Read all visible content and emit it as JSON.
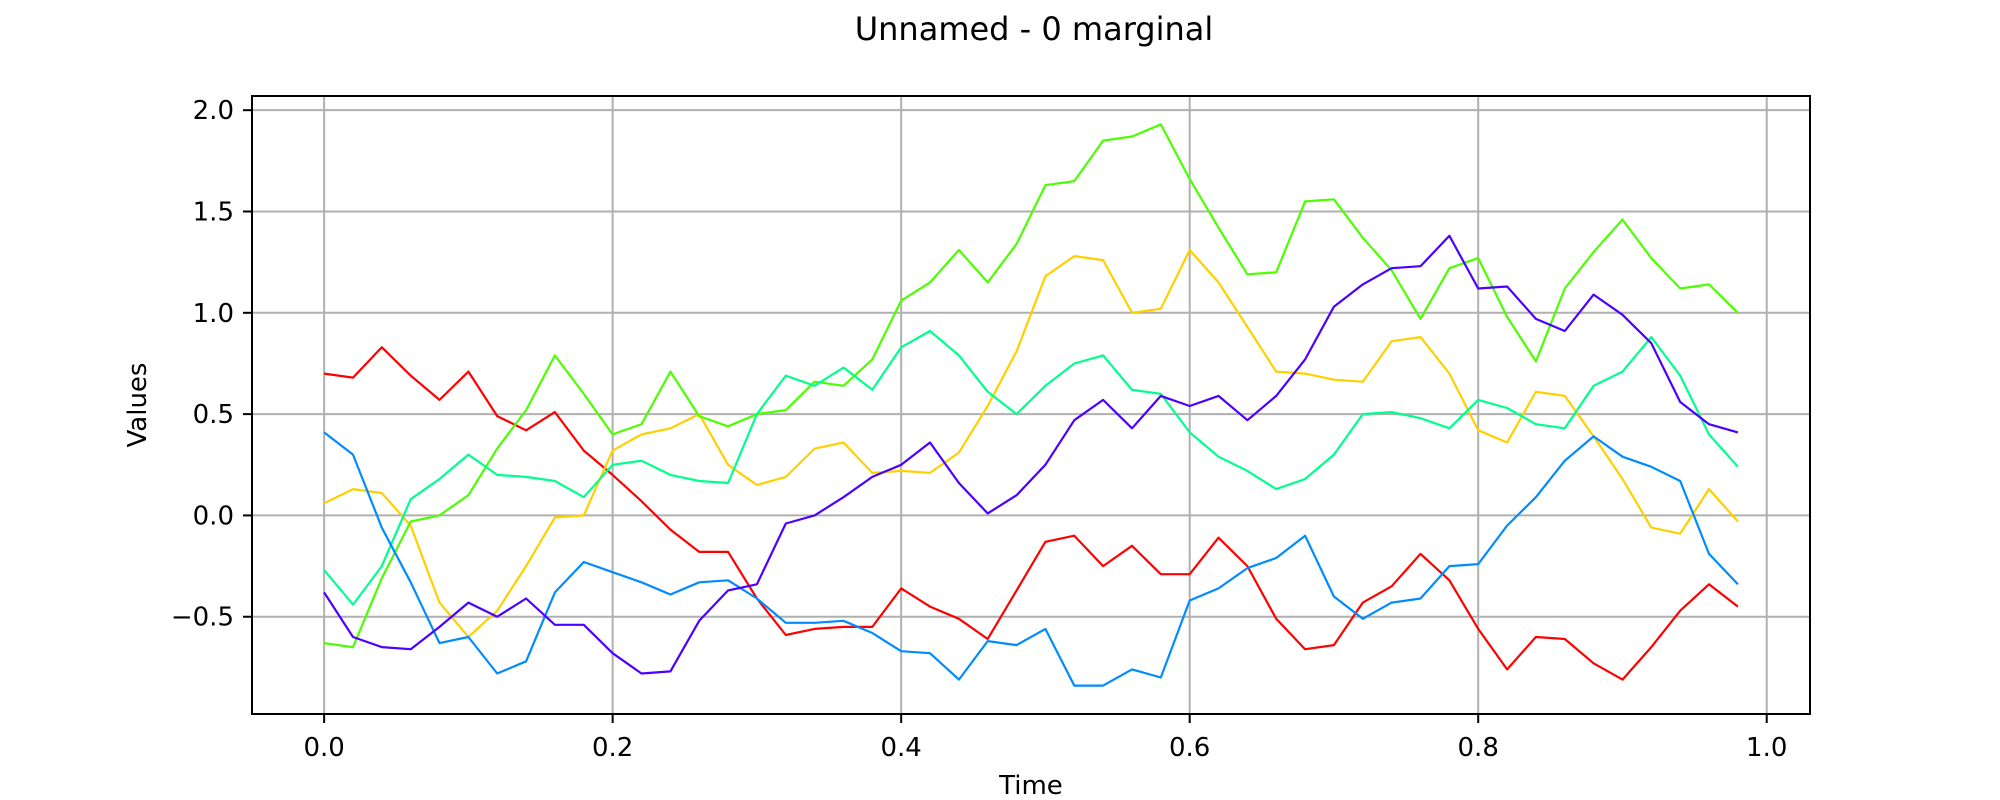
{
  "chart_data": {
    "type": "line",
    "title": "Unnamed - 0 marginal",
    "xlabel": "Time",
    "ylabel": "Values",
    "xlim": [
      -0.05,
      1.03
    ],
    "ylim": [
      -0.98,
      2.07
    ],
    "xticks": [
      0.0,
      0.2,
      0.4,
      0.6,
      0.8,
      1.0
    ],
    "xtick_labels": [
      "0.0",
      "0.2",
      "0.4",
      "0.6",
      "0.8",
      "1.0"
    ],
    "yticks": [
      -0.5,
      0.0,
      0.5,
      1.0,
      1.5,
      2.0
    ],
    "ytick_labels": [
      "−0.5",
      "0.0",
      "0.5",
      "1.0",
      "1.5",
      "2.0"
    ],
    "grid": true,
    "x": [
      0.0,
      0.02,
      0.04,
      0.06,
      0.08,
      0.1,
      0.12,
      0.14,
      0.16,
      0.18,
      0.2,
      0.22,
      0.24,
      0.26,
      0.28,
      0.3,
      0.32,
      0.34,
      0.36,
      0.38,
      0.4,
      0.42,
      0.44,
      0.46,
      0.48,
      0.5,
      0.52,
      0.54,
      0.56,
      0.58,
      0.6,
      0.62,
      0.64,
      0.66,
      0.68,
      0.7,
      0.72,
      0.74,
      0.76,
      0.78,
      0.8,
      0.82,
      0.84,
      0.86,
      0.88,
      0.9,
      0.92,
      0.94,
      0.96,
      0.98
    ],
    "series": [
      {
        "color": "#ff0000",
        "values": [
          0.7,
          0.68,
          0.83,
          0.69,
          0.57,
          0.71,
          0.49,
          0.42,
          0.51,
          0.32,
          0.2,
          0.07,
          -0.07,
          -0.18,
          -0.18,
          -0.41,
          -0.59,
          -0.56,
          -0.55,
          -0.55,
          -0.36,
          -0.45,
          -0.51,
          -0.61,
          -0.37,
          -0.13,
          -0.1,
          -0.25,
          -0.15,
          -0.29,
          -0.29,
          -0.11,
          -0.25,
          -0.51,
          -0.66,
          -0.64,
          -0.43,
          -0.35,
          -0.19,
          -0.32,
          -0.56,
          -0.76,
          -0.6,
          -0.61,
          -0.73,
          -0.81,
          -0.65,
          -0.47,
          -0.34,
          -0.45
        ]
      },
      {
        "color": "#ffd000",
        "values": [
          0.06,
          0.13,
          0.11,
          -0.05,
          -0.43,
          -0.6,
          -0.47,
          -0.25,
          -0.01,
          0.0,
          0.32,
          0.4,
          0.43,
          0.5,
          0.25,
          0.15,
          0.19,
          0.33,
          0.36,
          0.21,
          0.22,
          0.21,
          0.31,
          0.54,
          0.81,
          1.18,
          1.28,
          1.26,
          1.0,
          1.02,
          1.31,
          1.15,
          0.93,
          0.71,
          0.7,
          0.67,
          0.66,
          0.86,
          0.88,
          0.7,
          0.42,
          0.36,
          0.61,
          0.59,
          0.39,
          0.18,
          -0.06,
          -0.09,
          0.13,
          -0.03
        ]
      },
      {
        "color": "#4cff00",
        "values": [
          -0.63,
          -0.65,
          -0.31,
          -0.03,
          0.0,
          0.1,
          0.33,
          0.52,
          0.79,
          0.6,
          0.4,
          0.45,
          0.71,
          0.49,
          0.44,
          0.5,
          0.52,
          0.66,
          0.64,
          0.77,
          1.06,
          1.15,
          1.31,
          1.15,
          1.34,
          1.63,
          1.65,
          1.85,
          1.87,
          1.93,
          1.66,
          1.42,
          1.19,
          1.2,
          1.55,
          1.56,
          1.37,
          1.21,
          0.97,
          1.22,
          1.27,
          0.98,
          0.76,
          1.12,
          1.3,
          1.46,
          1.27,
          1.12,
          1.14,
          1.0
        ]
      },
      {
        "color": "#00ff8c",
        "values": [
          -0.27,
          -0.44,
          -0.25,
          0.08,
          0.18,
          0.3,
          0.2,
          0.19,
          0.17,
          0.09,
          0.25,
          0.27,
          0.2,
          0.17,
          0.16,
          0.5,
          0.69,
          0.64,
          0.73,
          0.62,
          0.83,
          0.91,
          0.79,
          0.61,
          0.5,
          0.64,
          0.75,
          0.79,
          0.62,
          0.6,
          0.41,
          0.29,
          0.22,
          0.13,
          0.18,
          0.3,
          0.5,
          0.51,
          0.48,
          0.43,
          0.57,
          0.53,
          0.45,
          0.43,
          0.64,
          0.71,
          0.88,
          0.69,
          0.4,
          0.24
        ]
      },
      {
        "color": "#008cff",
        "values": [
          0.41,
          0.3,
          -0.06,
          -0.33,
          -0.63,
          -0.6,
          -0.78,
          -0.72,
          -0.38,
          -0.23,
          -0.28,
          -0.33,
          -0.39,
          -0.33,
          -0.32,
          -0.41,
          -0.53,
          -0.53,
          -0.52,
          -0.58,
          -0.67,
          -0.68,
          -0.81,
          -0.62,
          -0.64,
          -0.56,
          -0.84,
          -0.84,
          -0.76,
          -0.8,
          -0.42,
          -0.36,
          -0.26,
          -0.21,
          -0.1,
          -0.4,
          -0.51,
          -0.43,
          -0.41,
          -0.25,
          -0.24,
          -0.05,
          0.09,
          0.27,
          0.39,
          0.29,
          0.24,
          0.17,
          -0.19,
          -0.34
        ]
      },
      {
        "color": "#4c00ff",
        "values": [
          -0.38,
          -0.6,
          -0.65,
          -0.66,
          -0.55,
          -0.43,
          -0.5,
          -0.41,
          -0.54,
          -0.54,
          -0.68,
          -0.78,
          -0.77,
          -0.52,
          -0.37,
          -0.34,
          -0.04,
          0.0,
          0.09,
          0.19,
          0.25,
          0.36,
          0.16,
          0.01,
          0.1,
          0.25,
          0.47,
          0.57,
          0.43,
          0.59,
          0.54,
          0.59,
          0.47,
          0.59,
          0.77,
          1.03,
          1.14,
          1.22,
          1.23,
          1.38,
          1.12,
          1.13,
          0.97,
          0.91,
          1.09,
          0.99,
          0.85,
          0.56,
          0.45,
          0.41
        ]
      }
    ]
  }
}
